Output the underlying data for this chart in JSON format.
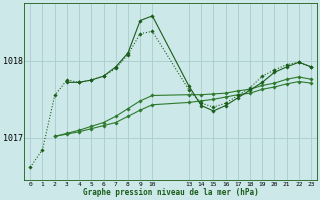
{
  "background_color": "#cce8e8",
  "grid_color": "#aacccc",
  "line_color_dark": "#1a5c1a",
  "line_color_medium": "#2d7a2d",
  "xlabel_label": "Graphe pression niveau de la mer (hPa)",
  "xticks_part1": [
    0,
    1,
    2,
    3,
    4,
    5,
    6,
    7,
    8,
    9,
    10
  ],
  "xticks_part2": [
    13,
    14,
    15,
    16,
    17,
    18,
    19,
    20,
    21,
    22,
    23
  ],
  "series": {
    "line1_dotted": {
      "x": [
        0,
        1,
        2,
        3,
        4,
        5,
        6,
        7,
        8,
        9,
        10,
        13,
        14,
        15,
        16,
        17,
        18,
        19,
        20,
        21,
        22,
        23
      ],
      "y": [
        1016.62,
        1016.85,
        1017.55,
        1017.75,
        1017.72,
        1017.75,
        1017.8,
        1017.9,
        1018.08,
        1018.35,
        1018.38,
        1017.62,
        1017.45,
        1017.4,
        1017.45,
        1017.55,
        1017.65,
        1017.8,
        1017.88,
        1017.95,
        1017.98,
        1017.92
      ]
    },
    "line2_peak": {
      "x": [
        3,
        4,
        5,
        6,
        7,
        8,
        9,
        10,
        13,
        14,
        15,
        16,
        17,
        18,
        19,
        20,
        21,
        22,
        23
      ],
      "y": [
        1017.72,
        1017.72,
        1017.75,
        1017.8,
        1017.92,
        1018.1,
        1018.52,
        1018.58,
        1017.67,
        1017.42,
        1017.35,
        1017.42,
        1017.52,
        1017.62,
        1017.72,
        1017.85,
        1017.92,
        1017.98,
        1017.92
      ]
    },
    "line3_flat": {
      "x": [
        2,
        3,
        4,
        5,
        6,
        7,
        8,
        9,
        10,
        13,
        14,
        15,
        16,
        17,
        18,
        19,
        20,
        21,
        22,
        23
      ],
      "y": [
        1017.02,
        1017.05,
        1017.08,
        1017.12,
        1017.16,
        1017.2,
        1017.28,
        1017.36,
        1017.43,
        1017.46,
        1017.48,
        1017.5,
        1017.53,
        1017.56,
        1017.58,
        1017.63,
        1017.66,
        1017.7,
        1017.73,
        1017.71
      ]
    },
    "line4_rising": {
      "x": [
        2,
        3,
        4,
        5,
        6,
        7,
        8,
        9,
        10,
        13,
        14,
        15,
        16,
        17,
        18,
        19,
        20,
        21,
        22,
        23
      ],
      "y": [
        1017.02,
        1017.06,
        1017.1,
        1017.15,
        1017.2,
        1017.28,
        1017.38,
        1017.48,
        1017.55,
        1017.56,
        1017.56,
        1017.57,
        1017.58,
        1017.61,
        1017.63,
        1017.68,
        1017.71,
        1017.76,
        1017.79,
        1017.76
      ]
    }
  },
  "ylim": [
    1016.45,
    1018.75
  ],
  "yticks": [
    1017,
    1018
  ],
  "figsize": [
    3.2,
    2.0
  ],
  "dpi": 100
}
